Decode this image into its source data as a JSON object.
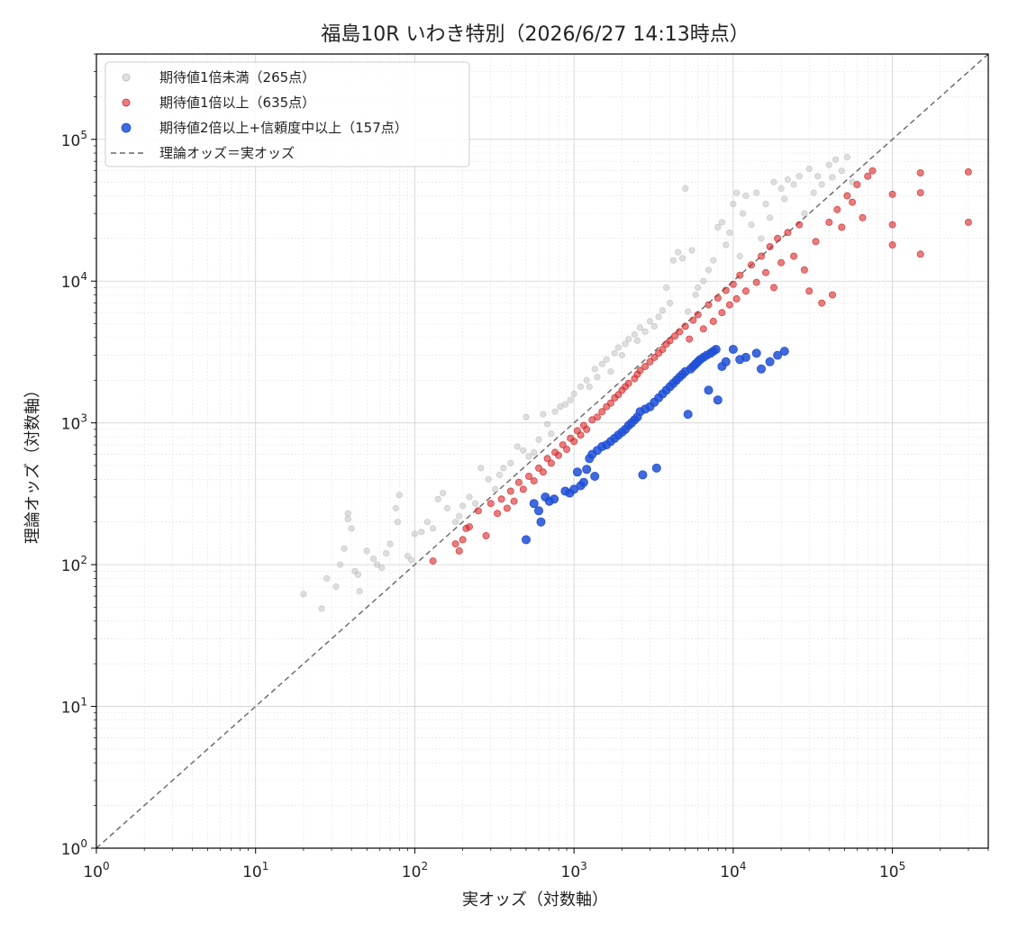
{
  "chart_data": {
    "type": "scatter",
    "title": "福島10R いわき特別（2026/6/27 14:13時点）",
    "xlabel": "実オッズ（対数軸）",
    "ylabel": "理論オッズ（対数軸）",
    "xscale": "log",
    "yscale": "log",
    "xlim": [
      1,
      400000
    ],
    "ylim": [
      1,
      400000
    ],
    "grid": true,
    "legend_position": "top-left",
    "x_tick_labels": [
      "10^0",
      "10^1",
      "10^2",
      "10^3",
      "10^4",
      "10^5"
    ],
    "y_tick_labels": [
      "10^0",
      "10^1",
      "10^2",
      "10^3",
      "10^4",
      "10^5"
    ],
    "reference_line": {
      "name": "理論オッズ＝実オッズ",
      "style": "dashed",
      "color": "#666666"
    },
    "series": [
      {
        "name": "期待値1倍未満（265点）",
        "color": "#b8b8b8",
        "opacity": 0.45,
        "points": [
          [
            20,
            62
          ],
          [
            26,
            49
          ],
          [
            28,
            80
          ],
          [
            32,
            70
          ],
          [
            34,
            100
          ],
          [
            36,
            130
          ],
          [
            38,
            210
          ],
          [
            38,
            230
          ],
          [
            40,
            180
          ],
          [
            42,
            90
          ],
          [
            44,
            85
          ],
          [
            45,
            65
          ],
          [
            50,
            125
          ],
          [
            55,
            110
          ],
          [
            58,
            100
          ],
          [
            62,
            95
          ],
          [
            66,
            120
          ],
          [
            70,
            140
          ],
          [
            76,
            250
          ],
          [
            78,
            200
          ],
          [
            80,
            310
          ],
          [
            90,
            115
          ],
          [
            95,
            108
          ],
          [
            100,
            165
          ],
          [
            110,
            170
          ],
          [
            120,
            200
          ],
          [
            130,
            180
          ],
          [
            140,
            290
          ],
          [
            150,
            320
          ],
          [
            160,
            250
          ],
          [
            180,
            200
          ],
          [
            190,
            220
          ],
          [
            200,
            260
          ],
          [
            220,
            300
          ],
          [
            240,
            270
          ],
          [
            260,
            480
          ],
          [
            290,
            400
          ],
          [
            320,
            340
          ],
          [
            340,
            430
          ],
          [
            360,
            480
          ],
          [
            400,
            520
          ],
          [
            440,
            680
          ],
          [
            480,
            640
          ],
          [
            500,
            1100
          ],
          [
            520,
            580
          ],
          [
            560,
            620
          ],
          [
            600,
            760
          ],
          [
            640,
            1150
          ],
          [
            680,
            980
          ],
          [
            720,
            840
          ],
          [
            760,
            1200
          ],
          [
            820,
            1300
          ],
          [
            880,
            1350
          ],
          [
            950,
            1450
          ],
          [
            1000,
            1600
          ],
          [
            1100,
            1800
          ],
          [
            1200,
            2000
          ],
          [
            1250,
            1800
          ],
          [
            1350,
            2400
          ],
          [
            1400,
            2100
          ],
          [
            1500,
            2600
          ],
          [
            1600,
            2800
          ],
          [
            1700,
            2300
          ],
          [
            1800,
            3100
          ],
          [
            1900,
            3400
          ],
          [
            2000,
            3000
          ],
          [
            2100,
            3600
          ],
          [
            2200,
            3900
          ],
          [
            2400,
            4200
          ],
          [
            2500,
            3800
          ],
          [
            2600,
            4700
          ],
          [
            2800,
            4400
          ],
          [
            3000,
            5200
          ],
          [
            3200,
            4800
          ],
          [
            3400,
            5600
          ],
          [
            3600,
            6200
          ],
          [
            3800,
            9000
          ],
          [
            4000,
            7000
          ],
          [
            4200,
            14000
          ],
          [
            4500,
            16000
          ],
          [
            4800,
            14500
          ],
          [
            5000,
            45000
          ],
          [
            5200,
            6100
          ],
          [
            5500,
            16500
          ],
          [
            5800,
            8000
          ],
          [
            6000,
            9000
          ],
          [
            6500,
            10000
          ],
          [
            7000,
            12000
          ],
          [
            7500,
            14000
          ],
          [
            8000,
            24000
          ],
          [
            8500,
            26000
          ],
          [
            9000,
            18000
          ],
          [
            9500,
            22000
          ],
          [
            10000,
            35000
          ],
          [
            10500,
            42000
          ],
          [
            11000,
            15000
          ],
          [
            11500,
            30000
          ],
          [
            12000,
            40000
          ],
          [
            13000,
            25000
          ],
          [
            14000,
            42000
          ],
          [
            15000,
            20000
          ],
          [
            16000,
            35000
          ],
          [
            17000,
            28000
          ],
          [
            18000,
            50000
          ],
          [
            20000,
            45000
          ],
          [
            21000,
            38000
          ],
          [
            22000,
            52000
          ],
          [
            24000,
            48000
          ],
          [
            26000,
            55000
          ],
          [
            28000,
            30000
          ],
          [
            30000,
            62000
          ],
          [
            32000,
            42000
          ],
          [
            34000,
            55000
          ],
          [
            36000,
            48000
          ],
          [
            40000,
            66000
          ],
          [
            42000,
            54000
          ],
          [
            44000,
            72000
          ],
          [
            48000,
            60000
          ],
          [
            52000,
            75000
          ],
          [
            56000,
            50000
          ]
        ]
      },
      {
        "name": "期待値1倍以上（635点）",
        "color": "#d62728",
        "opacity": 0.6,
        "points": [
          [
            130,
            106
          ],
          [
            180,
            140
          ],
          [
            190,
            125
          ],
          [
            200,
            150
          ],
          [
            210,
            180
          ],
          [
            220,
            185
          ],
          [
            250,
            240
          ],
          [
            280,
            160
          ],
          [
            300,
            270
          ],
          [
            330,
            230
          ],
          [
            350,
            290
          ],
          [
            380,
            250
          ],
          [
            400,
            330
          ],
          [
            420,
            280
          ],
          [
            450,
            380
          ],
          [
            480,
            340
          ],
          [
            520,
            420
          ],
          [
            560,
            390
          ],
          [
            600,
            480
          ],
          [
            640,
            450
          ],
          [
            680,
            560
          ],
          [
            720,
            520
          ],
          [
            760,
            620
          ],
          [
            800,
            590
          ],
          [
            850,
            700
          ],
          [
            900,
            650
          ],
          [
            950,
            780
          ],
          [
            1000,
            740
          ],
          [
            1050,
            880
          ],
          [
            1100,
            820
          ],
          [
            1150,
            960
          ],
          [
            1200,
            900
          ],
          [
            1300,
            1050
          ],
          [
            1400,
            1100
          ],
          [
            1500,
            1200
          ],
          [
            1600,
            1300
          ],
          [
            1700,
            1380
          ],
          [
            1800,
            1500
          ],
          [
            1900,
            1580
          ],
          [
            2000,
            1700
          ],
          [
            2100,
            1800
          ],
          [
            2200,
            1900
          ],
          [
            2400,
            2050
          ],
          [
            2500,
            2200
          ],
          [
            2600,
            2350
          ],
          [
            2800,
            2500
          ],
          [
            3000,
            2700
          ],
          [
            3200,
            2900
          ],
          [
            3400,
            3100
          ],
          [
            3600,
            3300
          ],
          [
            3800,
            3600
          ],
          [
            4000,
            3800
          ],
          [
            4300,
            4100
          ],
          [
            4600,
            4400
          ],
          [
            5000,
            4800
          ],
          [
            5300,
            3900
          ],
          [
            5600,
            5300
          ],
          [
            6000,
            5800
          ],
          [
            6500,
            4600
          ],
          [
            7000,
            6800
          ],
          [
            7500,
            5200
          ],
          [
            8000,
            7600
          ],
          [
            8500,
            6000
          ],
          [
            9000,
            8600
          ],
          [
            9500,
            6800
          ],
          [
            10000,
            9500
          ],
          [
            10500,
            7500
          ],
          [
            11000,
            11000
          ],
          [
            12000,
            8500
          ],
          [
            13000,
            13000
          ],
          [
            14000,
            9800
          ],
          [
            15000,
            15000
          ],
          [
            16000,
            11500
          ],
          [
            17000,
            17500
          ],
          [
            18000,
            9000
          ],
          [
            19000,
            20000
          ],
          [
            20000,
            13500
          ],
          [
            22000,
            22000
          ],
          [
            24000,
            15000
          ],
          [
            26000,
            25000
          ],
          [
            28000,
            12000
          ],
          [
            30000,
            8500
          ],
          [
            33000,
            19000
          ],
          [
            36000,
            7000
          ],
          [
            40000,
            26000
          ],
          [
            42000,
            8000
          ],
          [
            45000,
            32000
          ],
          [
            48000,
            24000
          ],
          [
            52000,
            40000
          ],
          [
            56000,
            36000
          ],
          [
            60000,
            48000
          ],
          [
            65000,
            28000
          ],
          [
            70000,
            55000
          ],
          [
            75000,
            60000
          ],
          [
            100000,
            25000
          ],
          [
            100000,
            41000
          ],
          [
            100000,
            18000
          ],
          [
            150000,
            58000
          ],
          [
            150000,
            42000
          ],
          [
            150000,
            15500
          ],
          [
            300000,
            59000
          ],
          [
            300000,
            26000
          ]
        ]
      },
      {
        "name": "期待値2倍以上+信頼度中以上（157点）",
        "color": "#1f4fd6",
        "opacity": 0.85,
        "points": [
          [
            500,
            150
          ],
          [
            560,
            270
          ],
          [
            600,
            240
          ],
          [
            620,
            200
          ],
          [
            660,
            300
          ],
          [
            700,
            280
          ],
          [
            750,
            290
          ],
          [
            880,
            330
          ],
          [
            940,
            320
          ],
          [
            1000,
            340
          ],
          [
            1050,
            450
          ],
          [
            1100,
            360
          ],
          [
            1150,
            380
          ],
          [
            1200,
            470
          ],
          [
            1250,
            560
          ],
          [
            1300,
            600
          ],
          [
            1350,
            420
          ],
          [
            1400,
            640
          ],
          [
            1500,
            680
          ],
          [
            1600,
            700
          ],
          [
            1700,
            740
          ],
          [
            1800,
            780
          ],
          [
            1900,
            820
          ],
          [
            2000,
            860
          ],
          [
            2100,
            900
          ],
          [
            2200,
            960
          ],
          [
            2300,
            1000
          ],
          [
            2400,
            1050
          ],
          [
            2500,
            1100
          ],
          [
            2600,
            1200
          ],
          [
            2700,
            430
          ],
          [
            2800,
            1250
          ],
          [
            3000,
            1300
          ],
          [
            3200,
            1400
          ],
          [
            3300,
            480
          ],
          [
            3400,
            1500
          ],
          [
            3600,
            1600
          ],
          [
            3800,
            1700
          ],
          [
            4000,
            1800
          ],
          [
            4200,
            1900
          ],
          [
            4400,
            2000
          ],
          [
            4600,
            2100
          ],
          [
            4800,
            2200
          ],
          [
            5000,
            2300
          ],
          [
            5200,
            1150
          ],
          [
            5400,
            2400
          ],
          [
            5600,
            2500
          ],
          [
            5800,
            2600
          ],
          [
            6000,
            2700
          ],
          [
            6200,
            2800
          ],
          [
            6500,
            2900
          ],
          [
            6800,
            3000
          ],
          [
            7000,
            1700
          ],
          [
            7200,
            3100
          ],
          [
            7500,
            3200
          ],
          [
            7800,
            3300
          ],
          [
            8000,
            1450
          ],
          [
            8500,
            2500
          ],
          [
            9000,
            2700
          ],
          [
            10000,
            3300
          ],
          [
            11000,
            2800
          ],
          [
            12000,
            2900
          ],
          [
            14000,
            3100
          ],
          [
            15000,
            2400
          ],
          [
            17000,
            2700
          ],
          [
            19000,
            3000
          ],
          [
            21000,
            3200
          ]
        ]
      }
    ]
  }
}
